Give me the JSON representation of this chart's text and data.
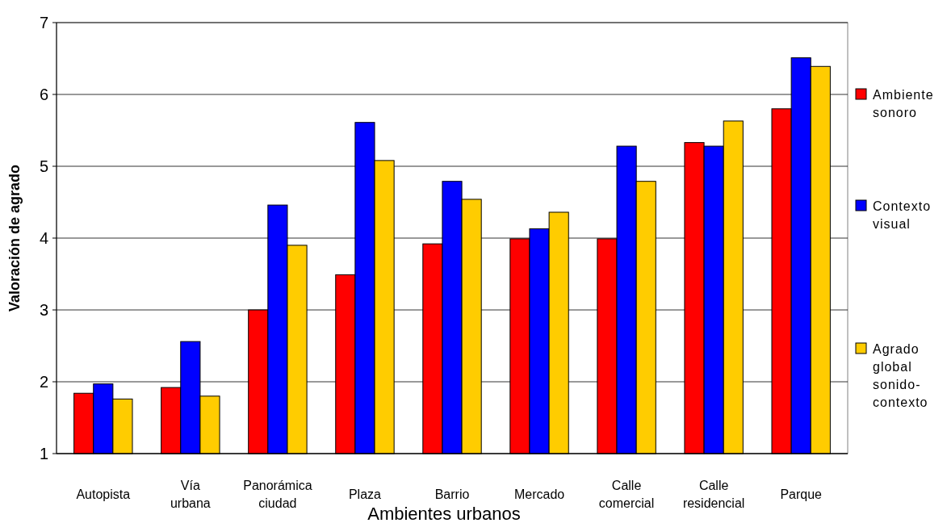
{
  "chart_data": {
    "type": "bar",
    "xlabel": "Ambientes urbanos",
    "ylabel": "Valoración de agrado",
    "categories": [
      "Autopista",
      "Vía urbana",
      "Panorámica ciudad",
      "Plaza",
      "Barrio",
      "Mercado",
      "Calle comercial",
      "Calle residencial",
      "Parque"
    ],
    "series": [
      {
        "name": "Ambiente sonoro",
        "color": "#ff0000",
        "values": [
          1.84,
          1.92,
          3.0,
          3.49,
          3.92,
          3.99,
          3.99,
          5.33,
          5.8
        ]
      },
      {
        "name": "Contexto visual",
        "color": "#0000ff",
        "values": [
          1.97,
          2.56,
          4.46,
          5.61,
          4.79,
          4.13,
          5.28,
          5.28,
          6.51
        ]
      },
      {
        "name": "Agrado global sonido-contexto",
        "color": "#ffcc00",
        "values": [
          1.76,
          1.8,
          3.9,
          5.08,
          4.54,
          4.36,
          4.79,
          5.63,
          6.39
        ]
      }
    ],
    "ylim": [
      1,
      7
    ],
    "yticks": [
      1,
      2,
      3,
      4,
      5,
      6,
      7
    ],
    "grid": "y",
    "legend": "right"
  }
}
